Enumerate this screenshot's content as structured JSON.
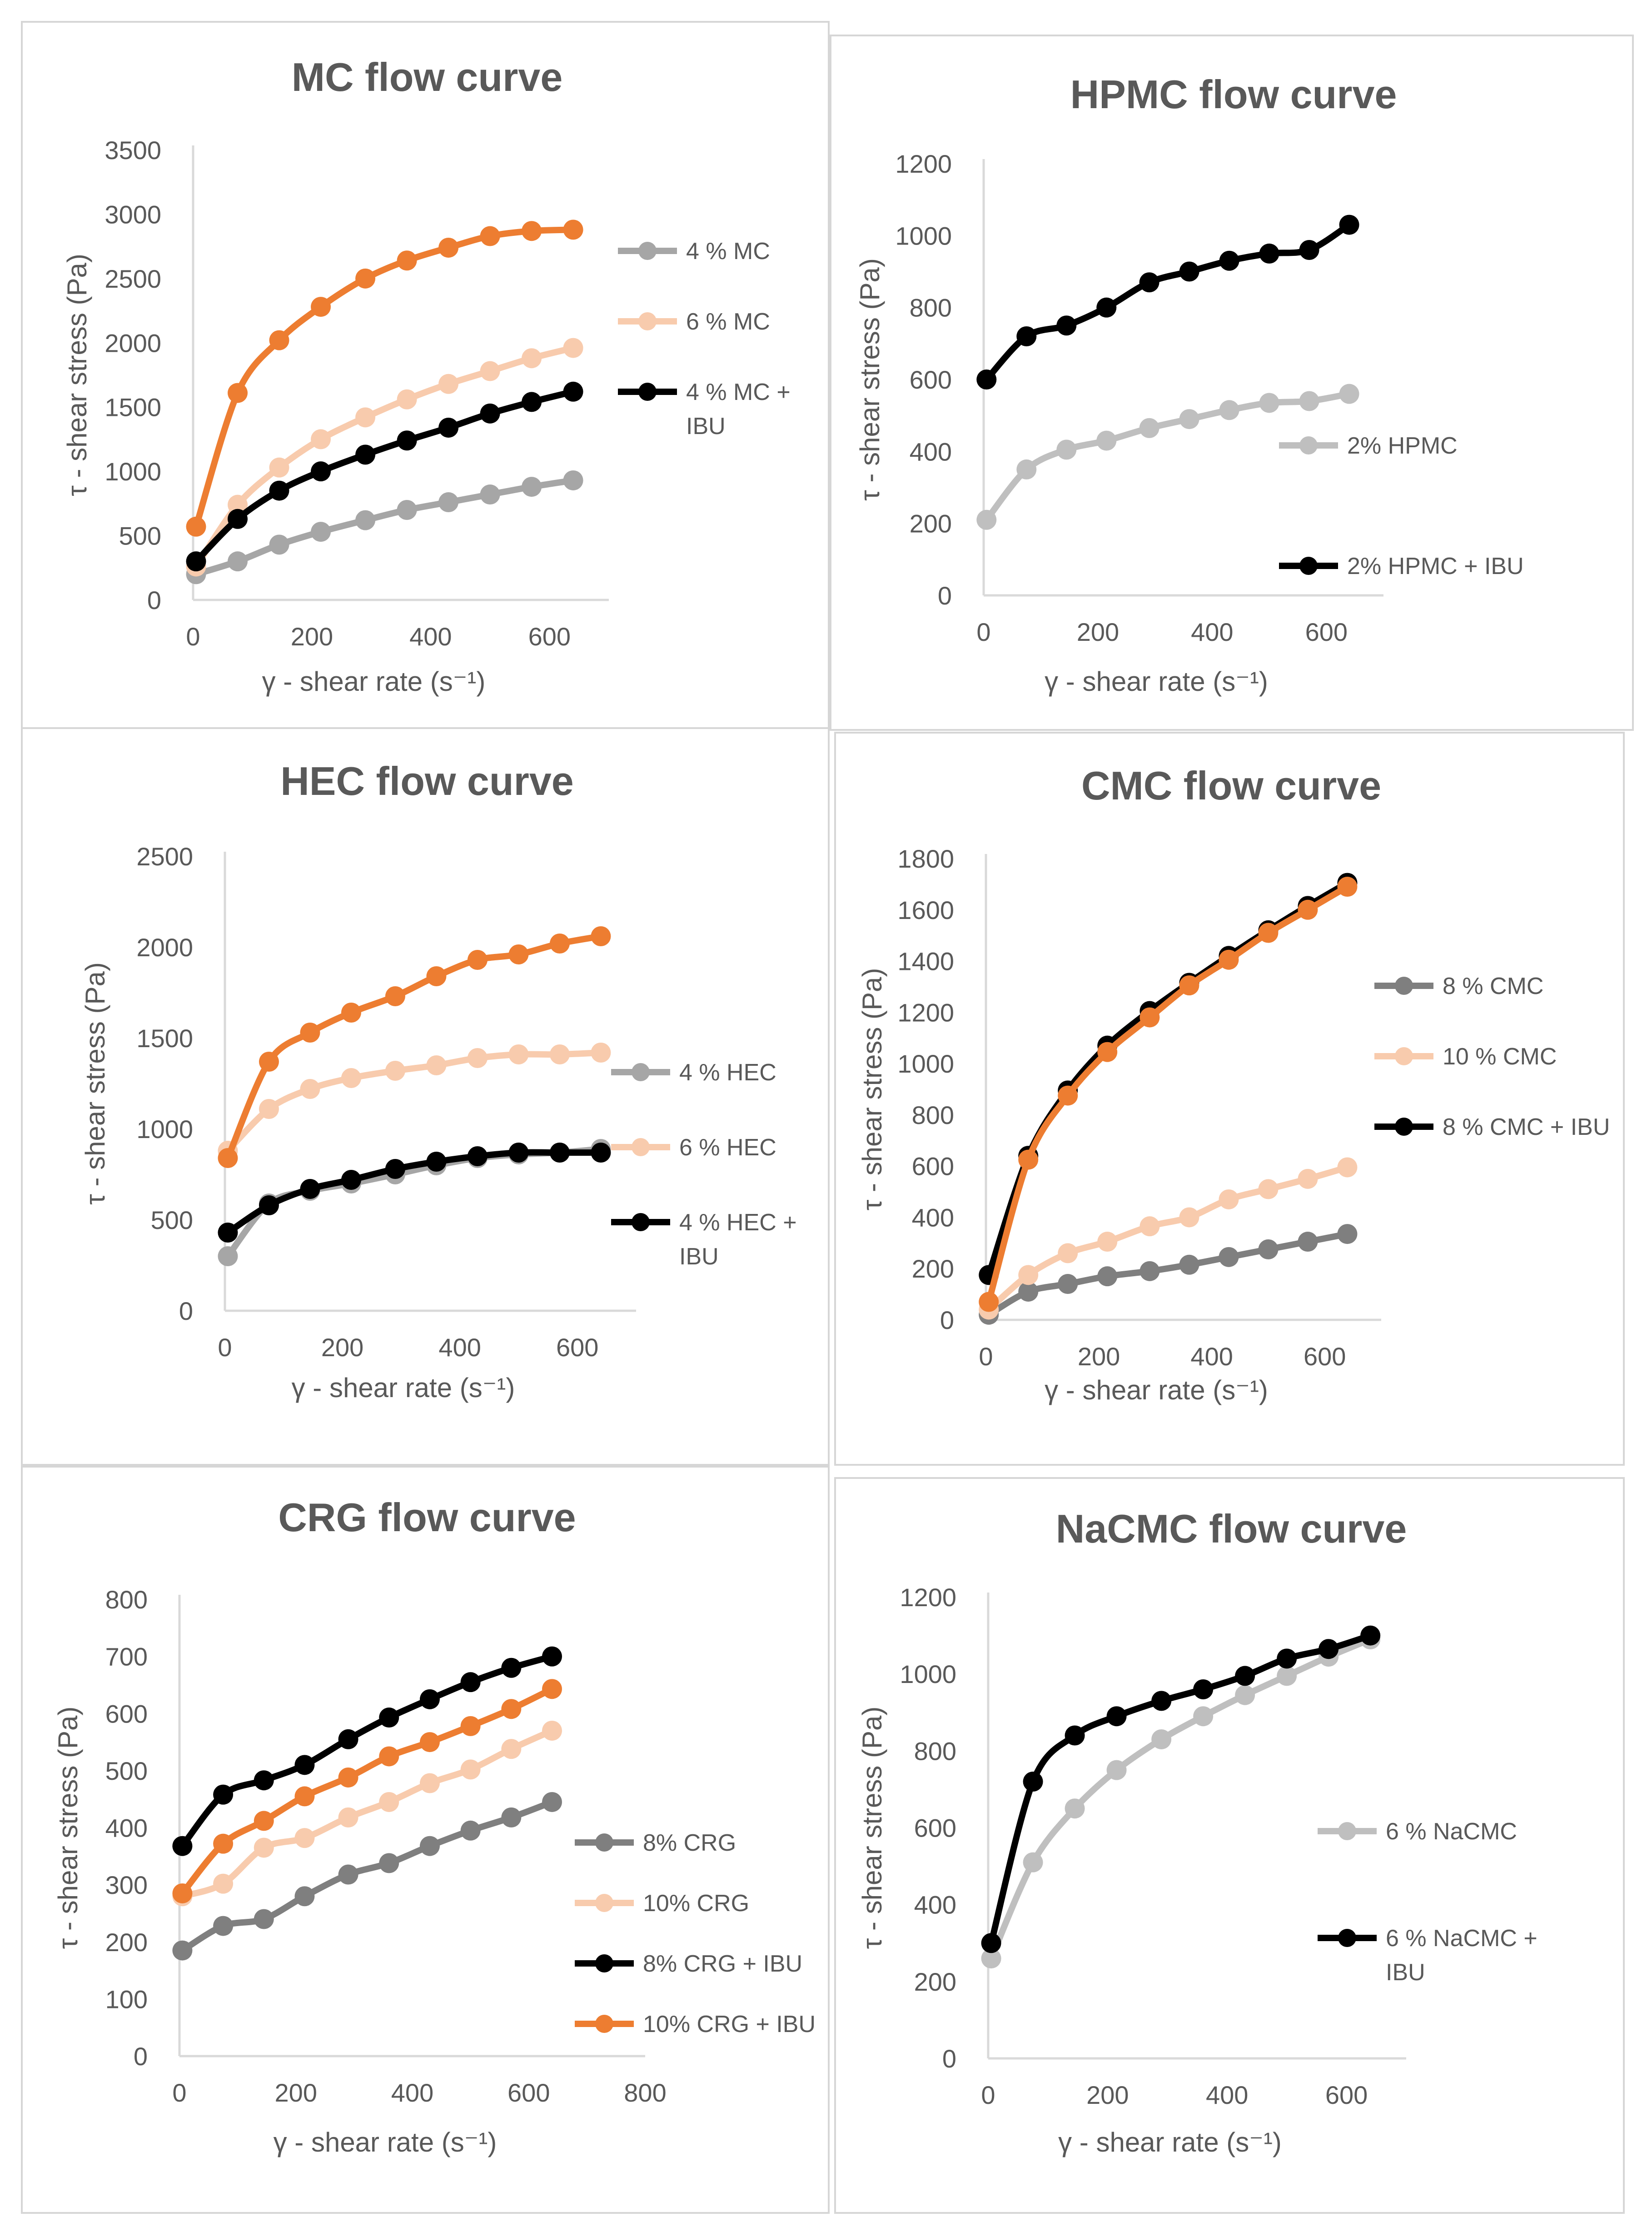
{
  "colors": {
    "gray": "#a6a6a6",
    "darkgray": "#7f7f7f",
    "lightgray": "#bfbfbf",
    "peach": "#f8cbad",
    "orange": "#ed7d31",
    "black": "#000000",
    "text": "#595959",
    "axis": "#d9d9d9"
  },
  "chart_data": [
    {
      "id": "mc",
      "type": "line",
      "title": "MC flow curve",
      "xlabel": "γ - shear rate (s⁻¹)",
      "ylabel": "τ - shear stress (Pa)",
      "xlim": [
        0,
        700
      ],
      "ylim": [
        0,
        3500
      ],
      "xticks": [
        0,
        200,
        400,
        600
      ],
      "yticks": [
        0,
        500,
        1000,
        1500,
        2000,
        2500,
        3000,
        3500
      ],
      "series": [
        {
          "name": "4 % MC",
          "color": "gray",
          "legend_lines": [
            "4 % MC"
          ],
          "x": [
            5,
            75,
            145,
            215,
            290,
            360,
            430,
            500,
            570,
            640
          ],
          "y": [
            200,
            300,
            430,
            530,
            620,
            700,
            760,
            820,
            880,
            930
          ]
        },
        {
          "name": "6 % MC",
          "color": "peach",
          "legend_lines": [
            "6 % MC"
          ],
          "x": [
            5,
            75,
            145,
            215,
            290,
            360,
            430,
            500,
            570,
            640
          ],
          "y": [
            260,
            740,
            1030,
            1250,
            1420,
            1560,
            1680,
            1780,
            1880,
            1960
          ]
        },
        {
          "name": "4 % MC + IBU",
          "color": "black",
          "legend_lines": [
            "4 % MC +",
            "IBU"
          ],
          "x": [
            5,
            75,
            145,
            215,
            290,
            360,
            430,
            500,
            570,
            640
          ],
          "y": [
            300,
            630,
            850,
            1000,
            1130,
            1240,
            1340,
            1450,
            1540,
            1620
          ]
        },
        {
          "name": "orange series",
          "color": "orange",
          "legend_lines": [],
          "x": [
            5,
            75,
            145,
            215,
            290,
            360,
            430,
            500,
            570,
            640
          ],
          "y": [
            570,
            1610,
            2020,
            2280,
            2500,
            2640,
            2740,
            2830,
            2870,
            2880
          ]
        }
      ]
    },
    {
      "id": "hpmc",
      "type": "line",
      "title": "HPMC flow curve",
      "xlabel": "γ - shear rate (s⁻¹)",
      "ylabel": "τ - shear stress (Pa)",
      "xlim": [
        0,
        700
      ],
      "ylim": [
        0,
        1200
      ],
      "xticks": [
        0,
        200,
        400,
        600
      ],
      "yticks": [
        0,
        200,
        400,
        600,
        800,
        1000,
        1200
      ],
      "series": [
        {
          "name": "2% HPMC",
          "color": "lightgray",
          "legend_lines": [
            "2% HPMC"
          ],
          "x": [
            5,
            75,
            145,
            215,
            290,
            360,
            430,
            500,
            570,
            640
          ],
          "y": [
            210,
            350,
            405,
            430,
            465,
            490,
            515,
            535,
            540,
            560
          ]
        },
        {
          "name": "2% HPMC + IBU",
          "color": "black",
          "legend_lines": [
            "2% HPMC + IBU"
          ],
          "x": [
            5,
            75,
            145,
            215,
            290,
            360,
            430,
            500,
            570,
            640
          ],
          "y": [
            600,
            720,
            750,
            800,
            870,
            900,
            930,
            950,
            960,
            1030
          ]
        }
      ]
    },
    {
      "id": "hec",
      "type": "line",
      "title": "HEC flow curve",
      "xlabel": "γ - shear rate (s⁻¹)",
      "ylabel": "τ - shear stress (Pa)",
      "xlim": [
        0,
        700
      ],
      "ylim": [
        0,
        2500
      ],
      "xticks": [
        0,
        200,
        400,
        600
      ],
      "yticks": [
        0,
        500,
        1000,
        1500,
        2000,
        2500
      ],
      "series": [
        {
          "name": "4 % HEC",
          "color": "gray",
          "legend_lines": [
            "4 % HEC"
          ],
          "x": [
            5,
            75,
            145,
            215,
            290,
            360,
            430,
            500,
            570,
            640
          ],
          "y": [
            300,
            590,
            660,
            700,
            750,
            800,
            840,
            860,
            870,
            890
          ]
        },
        {
          "name": "6 % HEC",
          "color": "peach",
          "legend_lines": [
            "6 % HEC"
          ],
          "x": [
            5,
            75,
            145,
            215,
            290,
            360,
            430,
            500,
            570,
            640
          ],
          "y": [
            880,
            1110,
            1220,
            1280,
            1320,
            1350,
            1390,
            1410,
            1410,
            1420
          ]
        },
        {
          "name": "4 % HEC + IBU",
          "color": "black",
          "legend_lines": [
            "4 % HEC +",
            "IBU"
          ],
          "x": [
            5,
            75,
            145,
            215,
            290,
            360,
            430,
            500,
            570,
            640
          ],
          "y": [
            430,
            580,
            670,
            720,
            780,
            820,
            850,
            870,
            870,
            870
          ]
        },
        {
          "name": "orange series",
          "color": "orange",
          "legend_lines": [],
          "x": [
            5,
            75,
            145,
            215,
            290,
            360,
            430,
            500,
            570,
            640
          ],
          "y": [
            840,
            1370,
            1530,
            1640,
            1730,
            1840,
            1930,
            1960,
            2020,
            2060
          ]
        }
      ]
    },
    {
      "id": "cmc",
      "type": "line",
      "title": "CMC flow curve",
      "xlabel": "γ - shear rate (s⁻¹)",
      "ylabel": "τ - shear stress (Pa)",
      "xlim": [
        0,
        700
      ],
      "ylim": [
        0,
        1800
      ],
      "xticks": [
        0,
        200,
        400,
        600
      ],
      "yticks": [
        0,
        200,
        400,
        600,
        800,
        1000,
        1200,
        1400,
        1600,
        1800
      ],
      "series": [
        {
          "name": "8 % CMC",
          "color": "darkgray",
          "legend_lines": [
            "8 % CMC"
          ],
          "x": [
            5,
            75,
            145,
            215,
            290,
            360,
            430,
            500,
            570,
            640
          ],
          "y": [
            20,
            110,
            140,
            170,
            190,
            215,
            245,
            275,
            305,
            335
          ]
        },
        {
          "name": "10 % CMC",
          "color": "peach",
          "legend_lines": [
            "10 % CMC"
          ],
          "x": [
            5,
            75,
            145,
            215,
            290,
            360,
            430,
            500,
            570,
            640
          ],
          "y": [
            40,
            175,
            260,
            305,
            365,
            400,
            470,
            510,
            550,
            595
          ]
        },
        {
          "name": "8 % CMC + IBU",
          "color": "black",
          "legend_lines": [
            "8 % CMC + IBU"
          ],
          "x": [
            5,
            75,
            145,
            215,
            290,
            360,
            430,
            500,
            570,
            640
          ],
          "y": [
            175,
            640,
            895,
            1070,
            1205,
            1315,
            1420,
            1520,
            1615,
            1705
          ]
        },
        {
          "name": "orange series",
          "color": "orange",
          "legend_lines": [],
          "x": [
            5,
            75,
            145,
            215,
            290,
            360,
            430,
            500,
            570,
            640
          ],
          "y": [
            70,
            625,
            875,
            1045,
            1180,
            1305,
            1405,
            1510,
            1600,
            1690
          ]
        }
      ]
    },
    {
      "id": "crg",
      "type": "line",
      "title": "CRG flow curve",
      "xlabel": "γ - shear rate (s⁻¹)",
      "ylabel": "τ - shear stress (Pa)",
      "xlim": [
        0,
        800
      ],
      "ylim": [
        0,
        800
      ],
      "xticks": [
        0,
        200,
        400,
        600,
        800
      ],
      "yticks": [
        0,
        100,
        200,
        300,
        400,
        500,
        600,
        700,
        800
      ],
      "series": [
        {
          "name": "8% CRG",
          "color": "darkgray",
          "legend_lines": [
            "8% CRG"
          ],
          "x": [
            5,
            75,
            145,
            215,
            290,
            360,
            430,
            500,
            570,
            640
          ],
          "y": [
            185,
            228,
            240,
            280,
            318,
            338,
            368,
            395,
            418,
            445
          ]
        },
        {
          "name": "10% CRG",
          "color": "peach",
          "legend_lines": [
            "10% CRG"
          ],
          "x": [
            5,
            75,
            145,
            215,
            290,
            360,
            430,
            500,
            570,
            640
          ],
          "y": [
            280,
            302,
            365,
            382,
            418,
            445,
            478,
            502,
            538,
            570
          ]
        },
        {
          "name": "8% CRG + IBU",
          "color": "black",
          "legend_lines": [
            "8% CRG + IBU"
          ],
          "x": [
            5,
            75,
            145,
            215,
            290,
            360,
            430,
            500,
            570,
            640
          ],
          "y": [
            368,
            458,
            483,
            510,
            555,
            593,
            625,
            655,
            680,
            700
          ]
        },
        {
          "name": "10% CRG + IBU",
          "color": "orange",
          "legend_lines": [
            "10% CRG + IBU"
          ],
          "x": [
            5,
            75,
            145,
            215,
            290,
            360,
            430,
            500,
            570,
            640
          ],
          "y": [
            285,
            372,
            412,
            455,
            488,
            525,
            550,
            578,
            608,
            643
          ]
        }
      ]
    },
    {
      "id": "nacmc",
      "type": "line",
      "title": "NaCMC flow curve",
      "xlabel": "γ - shear rate (s⁻¹)",
      "ylabel": "τ - shear stress (Pa)",
      "xlim": [
        0,
        700
      ],
      "ylim": [
        0,
        1200
      ],
      "xticks": [
        0,
        200,
        400,
        600
      ],
      "yticks": [
        0,
        200,
        400,
        600,
        800,
        1000,
        1200
      ],
      "series": [
        {
          "name": "6 % NaCMC",
          "color": "lightgray",
          "legend_lines": [
            "6 % NaCMC"
          ],
          "x": [
            5,
            75,
            145,
            215,
            290,
            360,
            430,
            500,
            570,
            640
          ],
          "y": [
            260,
            510,
            650,
            750,
            830,
            890,
            945,
            995,
            1045,
            1090
          ]
        },
        {
          "name": "6 % NaCMC + IBU",
          "color": "black",
          "legend_lines": [
            "6 % NaCMC +",
            "IBU"
          ],
          "x": [
            5,
            75,
            145,
            215,
            290,
            360,
            430,
            500,
            570,
            640
          ],
          "y": [
            300,
            720,
            840,
            890,
            930,
            960,
            995,
            1040,
            1065,
            1100
          ]
        }
      ]
    }
  ]
}
